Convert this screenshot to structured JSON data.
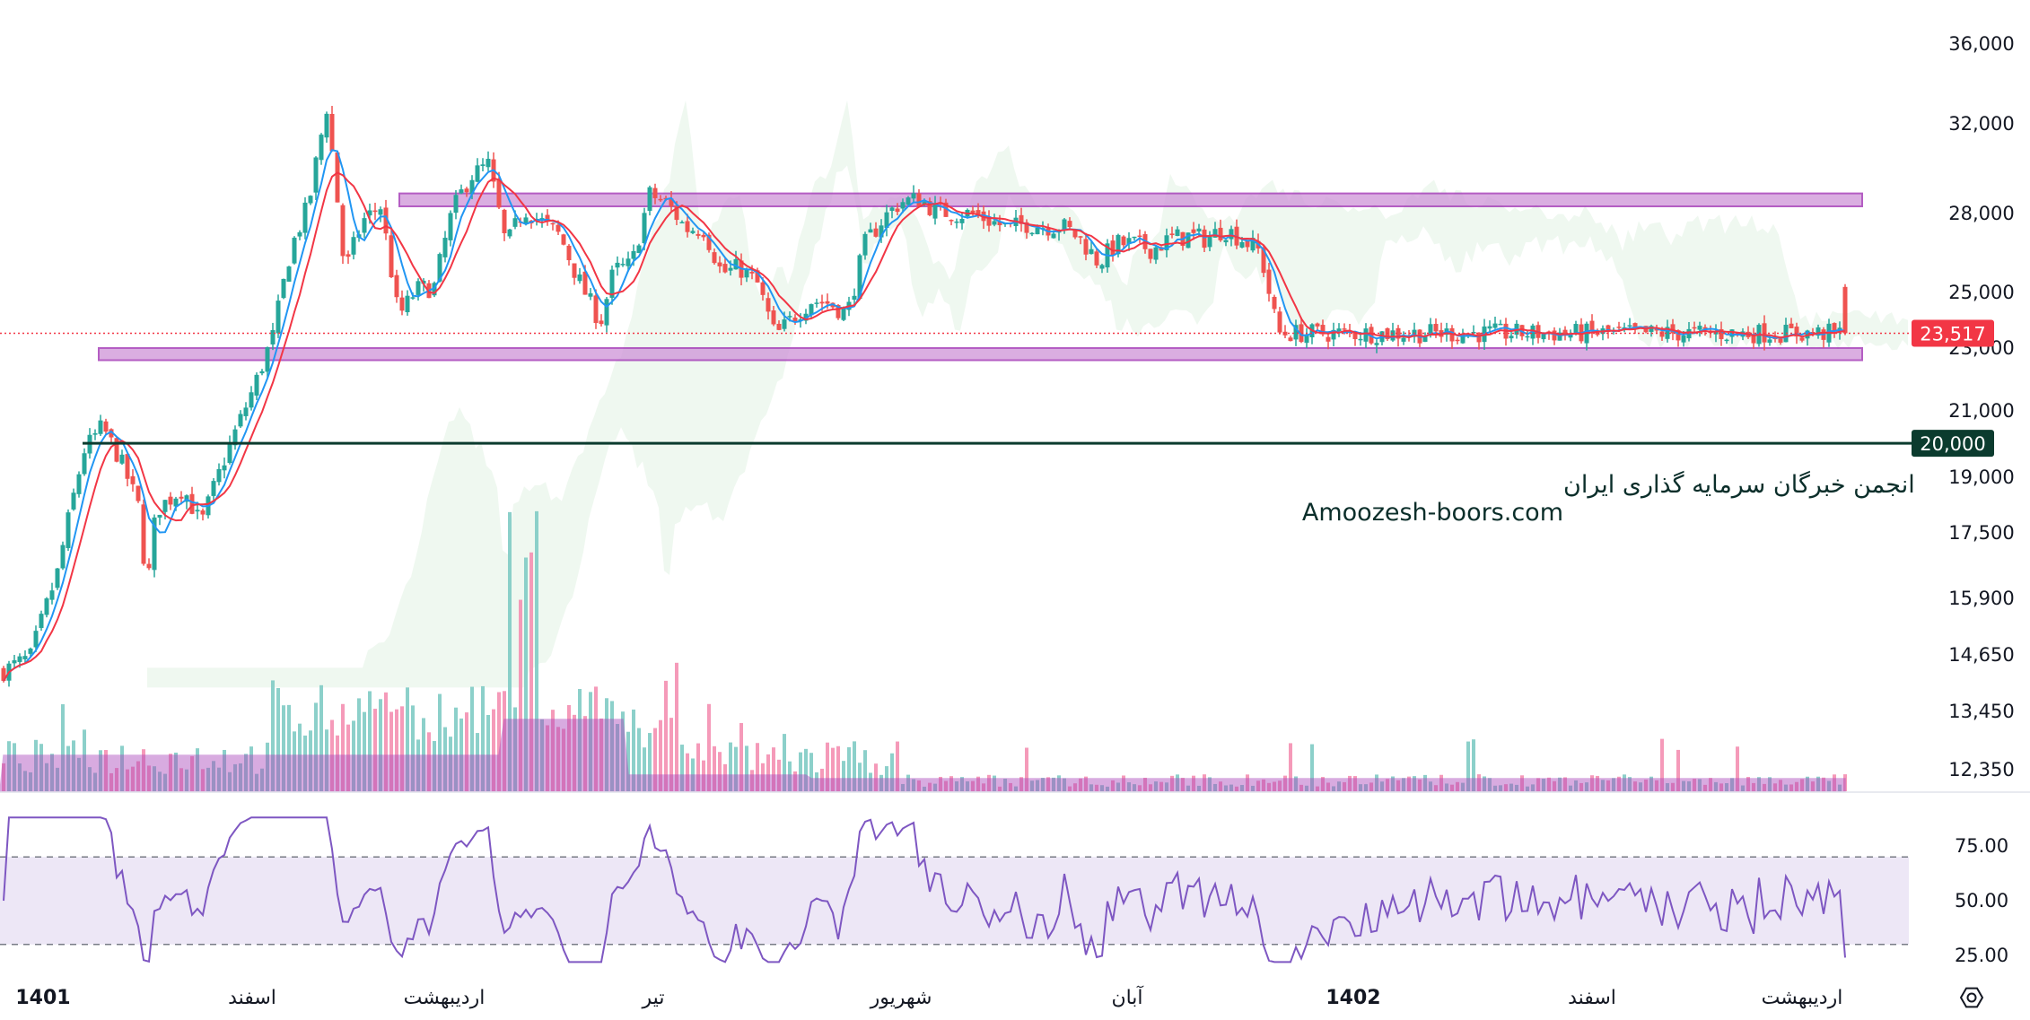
{
  "chart_data": {
    "type": "candlestick",
    "price_axis": {
      "ticks": [
        "36,000",
        "32,000",
        "28,000",
        "25,000",
        "23,000",
        "21,000",
        "19,000",
        "17,500",
        "15,900",
        "14,650",
        "13,450",
        "12,350"
      ],
      "tick_values": [
        36000,
        32000,
        28000,
        25000,
        23000,
        21000,
        19000,
        17500,
        15900,
        14650,
        13450,
        12350
      ],
      "last_price_label": "23,517",
      "last_price": 23517,
      "level_label": "20,000",
      "level_value": 20000,
      "scale": "log"
    },
    "time_axis": {
      "labels": [
        "1401",
        "اسفند",
        "اردیبهشت",
        "تیر",
        "شهریور",
        "آبان",
        "1402",
        "اسفند",
        "اردیبهشت"
      ],
      "bold": [
        true,
        false,
        false,
        false,
        false,
        false,
        true,
        false,
        false
      ]
    },
    "rsi_axis": {
      "ticks": [
        "75.00",
        "50.00",
        "25.00"
      ],
      "tick_values": [
        75,
        50,
        25
      ],
      "upper_band": 70,
      "lower_band": 30
    },
    "zones": [
      {
        "name": "resistance",
        "low": 28300,
        "high": 28850
      },
      {
        "name": "support",
        "low": 22600,
        "high": 23000
      }
    ],
    "watermark": {
      "line1": "انجمن خبرگان سرمایه گذاری ایران",
      "line2": "Amoozesh-boors.com"
    },
    "colors": {
      "up": "#26a69a",
      "down": "#ef5350",
      "ma_fast": "#2196f3",
      "ma_slow": "#f23645",
      "zone_fill": "#ce93d8",
      "zone_stroke": "#9c27b0",
      "rsi_line": "#7e57c2",
      "rsi_band": "#ede7f6",
      "volume_ma": "#ab47bc",
      "price_tag": "#f23645",
      "level_tag": "#0b3b2e"
    },
    "price_path_key_points": [
      [
        0,
        14300
      ],
      [
        30,
        14600
      ],
      [
        60,
        16500
      ],
      [
        90,
        19800
      ],
      [
        110,
        20500
      ],
      [
        130,
        19500
      ],
      [
        150,
        18200
      ],
      [
        160,
        16100
      ],
      [
        170,
        18100
      ],
      [
        200,
        18700
      ],
      [
        220,
        17700
      ],
      [
        250,
        19800
      ],
      [
        280,
        21800
      ],
      [
        300,
        23400
      ],
      [
        320,
        26600
      ],
      [
        340,
        28400
      ],
      [
        360,
        32800
      ],
      [
        380,
        25700
      ],
      [
        400,
        27700
      ],
      [
        420,
        28300
      ],
      [
        440,
        24100
      ],
      [
        460,
        25100
      ],
      [
        480,
        25200
      ],
      [
        500,
        28100
      ],
      [
        520,
        29600
      ],
      [
        540,
        30100
      ],
      [
        560,
        26700
      ],
      [
        580,
        28200
      ],
      [
        620,
        27100
      ],
      [
        640,
        25500
      ],
      [
        665,
        23900
      ],
      [
        680,
        25800
      ],
      [
        700,
        26000
      ],
      [
        720,
        28800
      ],
      [
        740,
        28400
      ],
      [
        760,
        27400
      ],
      [
        780,
        27400
      ],
      [
        800,
        25700
      ],
      [
        820,
        25900
      ],
      [
        840,
        25300
      ],
      [
        860,
        23400
      ],
      [
        880,
        24100
      ],
      [
        900,
        24700
      ],
      [
        920,
        24600
      ],
      [
        940,
        24200
      ],
      [
        960,
        26800
      ],
      [
        980,
        27800
      ],
      [
        1000,
        28500
      ],
      [
        1020,
        28600
      ],
      [
        1040,
        28100
      ],
      [
        1060,
        28000
      ],
      [
        1080,
        28000
      ],
      [
        1100,
        27700
      ],
      [
        1120,
        27400
      ],
      [
        1140,
        27600
      ],
      [
        1160,
        27500
      ],
      [
        1180,
        27500
      ],
      [
        1200,
        27000
      ],
      [
        1220,
        26100
      ],
      [
        1240,
        26800
      ],
      [
        1260,
        26800
      ],
      [
        1280,
        26600
      ],
      [
        1300,
        27000
      ],
      [
        1320,
        27100
      ],
      [
        1340,
        27000
      ],
      [
        1360,
        27400
      ],
      [
        1380,
        27000
      ],
      [
        1400,
        26500
      ],
      [
        1420,
        23517
      ]
    ]
  }
}
